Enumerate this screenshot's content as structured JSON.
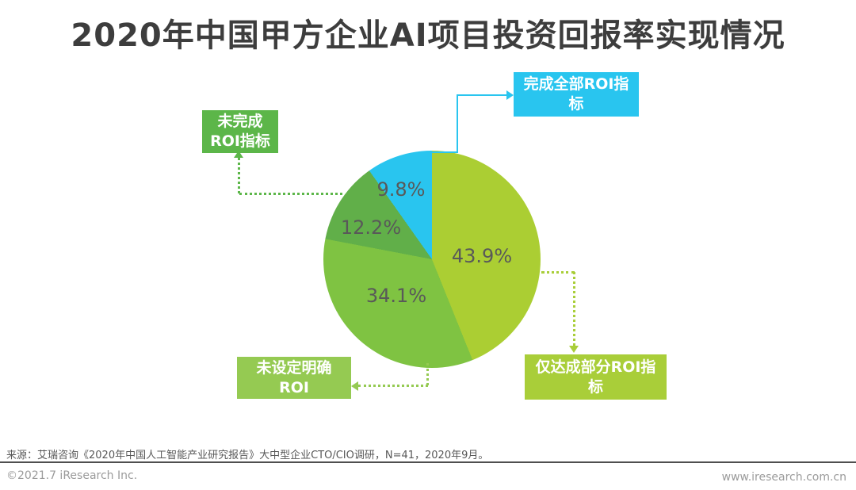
{
  "title": "2020年中国甲方企业AI项目投资回报率实现情况",
  "chart_data": {
    "type": "pie",
    "title": "2020年中国甲方企业AI项目投资回报率实现情况",
    "direction": "clockwise",
    "start_angle_deg": 0,
    "legend_position": "callout-boxes",
    "slices": [
      {
        "label": "仅达成部分ROI指标",
        "value": 43.9,
        "display": "43.9%",
        "color": "#abce33"
      },
      {
        "label": "未设定明确ROI",
        "value": 34.1,
        "display": "34.1%",
        "color": "#7fc342"
      },
      {
        "label": "未完成ROI指标",
        "value": 12.2,
        "display": "12.2%",
        "color": "#61af49"
      },
      {
        "label": "完成全部ROI指标",
        "value": 9.8,
        "display": "9.8%",
        "color": "#29c5ef"
      }
    ]
  },
  "callouts": {
    "complete_all": {
      "label": "完成全部ROI指\n标",
      "color": "#29c5ef"
    },
    "not_complete": {
      "label": "未完成\nROI指标",
      "color": "#5cb649"
    },
    "no_roi_set": {
      "label": "未设定明确\nROI",
      "color": "#95ca52"
    },
    "partial": {
      "label": "仅达成部分ROI指\n标",
      "color": "#a9ce39"
    }
  },
  "footer": {
    "source": "来源：艾瑞咨询《2020年中国人工智能产业研究报告》大中型企业CTO/CIO调研，N=41，2020年9月。",
    "copyright": "©2021.7 iResearch Inc.",
    "website": "www.iresearch.com.cn"
  }
}
